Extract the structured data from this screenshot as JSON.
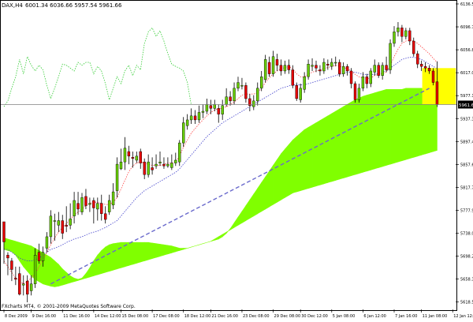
{
  "header": {
    "symbol": "DAX,H4",
    "ohlc": "6001.34 6036.66 5957.54 5961.66"
  },
  "copyright": "FXcharts MT4, © 2001-2009 MetaQuotes Software Corp.",
  "current_price_label": "5961.66",
  "colors": {
    "bull": "#66cc00",
    "bear": "#e60000",
    "wick": "#000000",
    "cloud": "#80ff00",
    "trendline": "#6a6acc",
    "tenkan": "#ff4444",
    "kijun": "#4444cc",
    "chikou": "#33cc33",
    "highlight": "#ffff00"
  },
  "chart_data": {
    "type": "candlestick",
    "title": "DAX,H4",
    "timeframe": "H4",
    "y_ticks": [
      6136.55,
      6096.7,
      6056.85,
      6017.0,
      5977.15,
      5937.3,
      5897.45,
      5857.6,
      5817.75,
      5777.9,
      5738.05,
      5698.2,
      5658.35,
      5618.5
    ],
    "ylim": [
      5603,
      6142
    ],
    "x_ticks": [
      {
        "bar": 0,
        "label": "8 Dec 2009"
      },
      {
        "bar": 7,
        "label": "9 Dec 16:00"
      },
      {
        "bar": 15,
        "label": "11 Dec 16:00"
      },
      {
        "bar": 23,
        "label": "14 Dec 12:00"
      },
      {
        "bar": 30,
        "label": "15 Dec 08:00"
      },
      {
        "bar": 38,
        "label": "17 Dec 08:00"
      },
      {
        "bar": 46,
        "label": "18 Dec 12:00"
      },
      {
        "bar": 53,
        "label": "21 Dec 16:00"
      },
      {
        "bar": 61,
        "label": "23 Dec 08:00"
      },
      {
        "bar": 69,
        "label": "29 Dec 08:00"
      },
      {
        "bar": 76,
        "label": "30 Dec 12:00"
      },
      {
        "bar": 84,
        "label": "5 Jan 08:00"
      },
      {
        "bar": 92,
        "label": "6 Jan 12:00"
      },
      {
        "bar": 100,
        "label": "7 Jan 16:00"
      },
      {
        "bar": 107,
        "label": "11 Jan 08:00"
      },
      {
        "bar": 115,
        "label": "12 Jan 12:00"
      }
    ],
    "candles": [
      [
        5758,
        5723,
        5733,
        5685
      ],
      [
        5700,
        5695,
        5705,
        5665
      ],
      [
        5690,
        5675,
        5695,
        5655
      ],
      [
        5660,
        5658,
        5680,
        5648
      ],
      [
        5668,
        5632,
        5680,
        5630
      ],
      [
        5648,
        5650,
        5665,
        5630
      ],
      [
        5655,
        5632,
        5665,
        5618
      ],
      [
        5638,
        5650,
        5665,
        5630
      ],
      [
        5650,
        5700,
        5712,
        5643
      ],
      [
        5705,
        5690,
        5720,
        5685
      ],
      [
        5690,
        5705,
        5715,
        5680
      ],
      [
        5712,
        5732,
        5740,
        5705
      ],
      [
        5732,
        5768,
        5778,
        5720
      ],
      [
        5760,
        5760,
        5772,
        5725
      ],
      [
        5752,
        5760,
        5775,
        5740
      ],
      [
        5760,
        5738,
        5770,
        5728
      ],
      [
        5752,
        5750,
        5785,
        5740
      ],
      [
        5752,
        5763,
        5790,
        5745
      ],
      [
        5768,
        5795,
        5810,
        5755
      ],
      [
        5790,
        5780,
        5810,
        5770
      ],
      [
        5775,
        5800,
        5808,
        5770
      ],
      [
        5802,
        5786,
        5815,
        5780
      ],
      [
        5788,
        5790,
        5800,
        5775
      ],
      [
        5795,
        5782,
        5800,
        5755
      ],
      [
        5780,
        5790,
        5800,
        5760
      ],
      [
        5790,
        5772,
        5805,
        5760
      ],
      [
        5772,
        5762,
        5785,
        5755
      ],
      [
        5775,
        5795,
        5805,
        5770
      ],
      [
        5787,
        5810,
        5825,
        5780
      ],
      [
        5812,
        5858,
        5870,
        5800
      ],
      [
        5850,
        5862,
        5885,
        5848
      ],
      [
        5862,
        5886,
        5905,
        5848
      ],
      [
        5880,
        5872,
        5890,
        5858
      ],
      [
        5870,
        5868,
        5880,
        5852
      ],
      [
        5865,
        5872,
        5880,
        5860
      ],
      [
        5880,
        5860,
        5885,
        5850
      ],
      [
        5862,
        5840,
        5868,
        5832
      ],
      [
        5840,
        5862,
        5875,
        5835
      ],
      [
        5852,
        5848,
        5870,
        5840
      ],
      [
        5855,
        5858,
        5875,
        5850
      ],
      [
        5860,
        5862,
        5880,
        5855
      ],
      [
        5858,
        5855,
        5870,
        5850
      ],
      [
        5855,
        5858,
        5870,
        5852
      ],
      [
        5852,
        5860,
        5875,
        5848
      ],
      [
        5860,
        5865,
        5878,
        5855
      ],
      [
        5862,
        5895,
        5900,
        5855
      ],
      [
        5895,
        5930,
        5940,
        5888
      ],
      [
        5925,
        5935,
        5945,
        5918
      ],
      [
        5935,
        5942,
        5955,
        5928
      ],
      [
        5942,
        5935,
        5952,
        5928
      ],
      [
        5935,
        5948,
        5960,
        5930
      ],
      [
        5948,
        5950,
        5962,
        5938
      ],
      [
        5950,
        5962,
        5972,
        5945
      ],
      [
        5960,
        5955,
        5970,
        5945
      ],
      [
        5955,
        5962,
        5970,
        5950
      ],
      [
        5955,
        5945,
        5962,
        5930
      ],
      [
        5945,
        5960,
        5970,
        5935
      ],
      [
        5962,
        5975,
        5990,
        5958
      ],
      [
        5975,
        5968,
        5985,
        5960
      ],
      [
        5968,
        5990,
        6000,
        5962
      ],
      [
        5990,
        6000,
        6010,
        5985
      ],
      [
        5995,
        5995,
        6008,
        5988
      ],
      [
        5995,
        5972,
        6000,
        5965
      ],
      [
        5972,
        5960,
        5980,
        5950
      ],
      [
        5958,
        5968,
        5978,
        5952
      ],
      [
        5968,
        5990,
        6000,
        5960
      ],
      [
        5990,
        6010,
        6020,
        5985
      ],
      [
        6005,
        6040,
        6048,
        6000
      ],
      [
        6035,
        6015,
        6045,
        6010
      ],
      [
        6015,
        6045,
        6055,
        6010
      ],
      [
        6040,
        6030,
        6050,
        6020
      ],
      [
        6030,
        6020,
        6040,
        6012
      ],
      [
        6020,
        6030,
        6038,
        6015
      ],
      [
        6030,
        6022,
        6040,
        6015
      ],
      [
        6022,
        5995,
        6030,
        5990
      ],
      [
        5995,
        5972,
        6000,
        5968
      ],
      [
        5970,
        5990,
        5998,
        5965
      ],
      [
        5988,
        6010,
        6018,
        5982
      ],
      [
        6010,
        6032,
        6040,
        6005
      ],
      [
        6028,
        6030,
        6042,
        6020
      ],
      [
        6030,
        6025,
        6038,
        6018
      ],
      [
        6022,
        6020,
        6030,
        6012
      ],
      [
        6020,
        6035,
        6042,
        6015
      ],
      [
        6032,
        6030,
        6040,
        6022
      ],
      [
        6028,
        6035,
        6042,
        6022
      ],
      [
        6035,
        6035,
        6045,
        6028
      ],
      [
        6035,
        6015,
        6040,
        6010
      ],
      [
        6015,
        6028,
        6035,
        6010
      ],
      [
        6028,
        6020,
        6032,
        6012
      ],
      [
        6020,
        5998,
        6025,
        5990
      ],
      [
        5998,
        5970,
        6002,
        5965
      ],
      [
        5970,
        5990,
        5998,
        5965
      ],
      [
        5990,
        6010,
        6018,
        5985
      ],
      [
        6010,
        5998,
        6015,
        5990
      ],
      [
        5998,
        6020,
        6025,
        5992
      ],
      [
        6018,
        6030,
        6040,
        6012
      ],
      [
        6030,
        6012,
        6035,
        6008
      ],
      [
        6012,
        6030,
        6035,
        6005
      ],
      [
        6030,
        6022,
        6045,
        6018
      ],
      [
        6022,
        6068,
        6075,
        6015
      ],
      [
        6068,
        6088,
        6098,
        6062
      ],
      [
        6088,
        6095,
        6105,
        6080
      ],
      [
        6095,
        6080,
        6100,
        6070
      ],
      [
        6080,
        6090,
        6095,
        6075
      ],
      [
        6090,
        6072,
        6095,
        6065
      ],
      [
        6072,
        6050,
        6078,
        6045
      ],
      [
        6050,
        6032,
        6055,
        6025
      ],
      [
        6032,
        6028,
        6038,
        6020
      ],
      [
        6028,
        6025,
        6035,
        6018
      ],
      [
        6025,
        6020,
        6030,
        6015
      ],
      [
        6020,
        6000,
        6025,
        5995
      ],
      [
        6001.34,
        5961.66,
        6036.66,
        5957.54
      ]
    ],
    "hline": 5961.66,
    "trendline": {
      "from_bar": 12,
      "from_value": 5650,
      "to_bar": 109,
      "to_value": 5990
    },
    "highlight_box": {
      "from_bar": 108,
      "to_bar": 115,
      "low": 5962,
      "high": 6025
    },
    "series": [
      {
        "name": "tenkan",
        "values": [
          5690,
          5680,
          5670,
          5660,
          5655,
          5650,
          5655,
          5660,
          5668,
          5680,
          5692,
          5705,
          5718,
          5730,
          5740,
          5748,
          5755,
          5762,
          5770,
          5775,
          5780,
          5786,
          5790,
          5792,
          5792,
          5790,
          5788,
          5788,
          5792,
          5800,
          5815,
          5830,
          5845,
          5855,
          5860,
          5862,
          5860,
          5858,
          5856,
          5856,
          5856,
          5858,
          5860,
          5860,
          5862,
          5872,
          5888,
          5900,
          5912,
          5920,
          5928,
          5935,
          5942,
          5948,
          5952,
          5955,
          5955,
          5958,
          5962,
          5966,
          5972,
          5978,
          5980,
          5980,
          5980,
          5982,
          5990,
          6000,
          6008,
          6015,
          6020,
          6024,
          6026,
          6028,
          6024,
          6015,
          6010,
          6010,
          6014,
          6018,
          6020,
          6022,
          6024,
          6026,
          6028,
          6030,
          6028,
          6026,
          6024,
          6020,
          6014,
          6010,
          6008,
          6006,
          6008,
          6012,
          6014,
          6016,
          6018,
          6030,
          6045,
          6058,
          6068,
          6072,
          6074,
          6072,
          6068,
          6062,
          6056,
          6050,
          6042,
          6035
        ]
      },
      {
        "name": "kijun",
        "values": [
          5710,
          5710,
          5705,
          5700,
          5695,
          5692,
          5690,
          5690,
          5692,
          5695,
          5700,
          5705,
          5710,
          5712,
          5715,
          5718,
          5722,
          5725,
          5728,
          5730,
          5732,
          5735,
          5738,
          5740,
          5742,
          5745,
          5748,
          5752,
          5756,
          5760,
          5768,
          5776,
          5784,
          5792,
          5800,
          5806,
          5812,
          5816,
          5820,
          5824,
          5828,
          5832,
          5836,
          5840,
          5844,
          5850,
          5858,
          5866,
          5874,
          5882,
          5890,
          5898,
          5906,
          5912,
          5918,
          5924,
          5930,
          5934,
          5938,
          5942,
          5946,
          5950,
          5954,
          5958,
          5962,
          5966,
          5970,
          5974,
          5978,
          5982,
          5986,
          5990,
          5992,
          5994,
          5996,
          5996,
          5996,
          5996,
          5998,
          6000,
          6002,
          6004,
          6006,
          6008,
          6010,
          6012,
          6014,
          6016,
          6018,
          6018,
          6018,
          6016,
          6014,
          6014,
          6014,
          6014,
          6016,
          6018,
          6020,
          6025,
          6030,
          6035,
          6040,
          6042,
          6044,
          6044,
          6042,
          6040,
          6036,
          6032,
          6028,
          6024
        ]
      },
      {
        "name": "chikou",
        "values": [
          5958,
          5968,
          5990,
          6010,
          6040,
          6015,
          6045,
          6030,
          6020,
          6030,
          6022,
          5995,
          5972,
          5990,
          6010,
          6032,
          6030,
          6025,
          6020,
          6035,
          6030,
          6035,
          6035,
          6015,
          6028,
          6020,
          5998,
          5970,
          5990,
          6010,
          5998,
          6020,
          6030,
          6012,
          6030,
          6022,
          6068,
          6088,
          6095,
          6080,
          6090,
          6072,
          6050,
          6032,
          6028,
          6025,
          6020,
          6000,
          5961
        ]
      },
      {
        "name": "cloud_a",
        "values": [
          5730,
          5728,
          5726,
          5724,
          5722,
          5720,
          5718,
          5716,
          5712,
          5708,
          5704,
          5700,
          5696,
          5690,
          5684,
          5676,
          5670,
          5664,
          5660,
          5658,
          5660,
          5668,
          5678,
          5690,
          5700,
          5708,
          5714,
          5718,
          5720,
          5721,
          5722,
          5722,
          5722,
          5722,
          5722,
          5722,
          5722,
          5722,
          5721,
          5720,
          5719,
          5718,
          5717,
          5716,
          5714,
          5712,
          5712,
          5712,
          5714,
          5716,
          5718,
          5720,
          5722,
          5724,
          5726,
          5728,
          5732,
          5738,
          5746,
          5756,
          5766,
          5776,
          5786,
          5796,
          5806,
          5816,
          5826,
          5836,
          5846,
          5856,
          5866,
          5876,
          5884,
          5892,
          5900,
          5906,
          5912,
          5918,
          5922,
          5926,
          5930,
          5934,
          5938,
          5942,
          5946,
          5950,
          5954,
          5958,
          5962,
          5966,
          5970,
          5973,
          5976,
          5978,
          5980,
          5982,
          5984,
          5986,
          5988,
          5988,
          5988,
          5988,
          5988,
          5990,
          5990,
          5990,
          5990,
          5990,
          5988,
          5987,
          5986,
          5985
        ]
      },
      {
        "name": "cloud_b",
        "values": [
          5710,
          5708,
          5706,
          5700,
          5690,
          5680,
          5672,
          5664,
          5658,
          5654,
          5650,
          5648,
          5646,
          5645,
          5646,
          5648,
          5650,
          5652,
          5654,
          5656,
          5658,
          5660,
          5662,
          5664,
          5666,
          5668,
          5670,
          5672,
          5674,
          5676,
          5678,
          5680,
          5682,
          5684,
          5686,
          5688,
          5690,
          5692,
          5694,
          5696,
          5698,
          5700,
          5702,
          5704,
          5706,
          5708,
          5710,
          5712,
          5714,
          5716,
          5718,
          5720,
          5722,
          5724,
          5728,
          5732,
          5736,
          5740,
          5744,
          5748,
          5752,
          5756,
          5760,
          5764,
          5768,
          5772,
          5776,
          5780,
          5784,
          5788,
          5792,
          5796,
          5800,
          5804,
          5808,
          5810,
          5812,
          5814,
          5816,
          5818,
          5820,
          5822,
          5824,
          5826,
          5828,
          5830,
          5832,
          5834,
          5836,
          5838,
          5840,
          5842,
          5844,
          5846,
          5848,
          5850,
          5852,
          5854,
          5856,
          5858,
          5860,
          5862,
          5864,
          5866,
          5868,
          5870,
          5872,
          5874,
          5876,
          5878,
          5880,
          5882
        ]
      }
    ]
  }
}
